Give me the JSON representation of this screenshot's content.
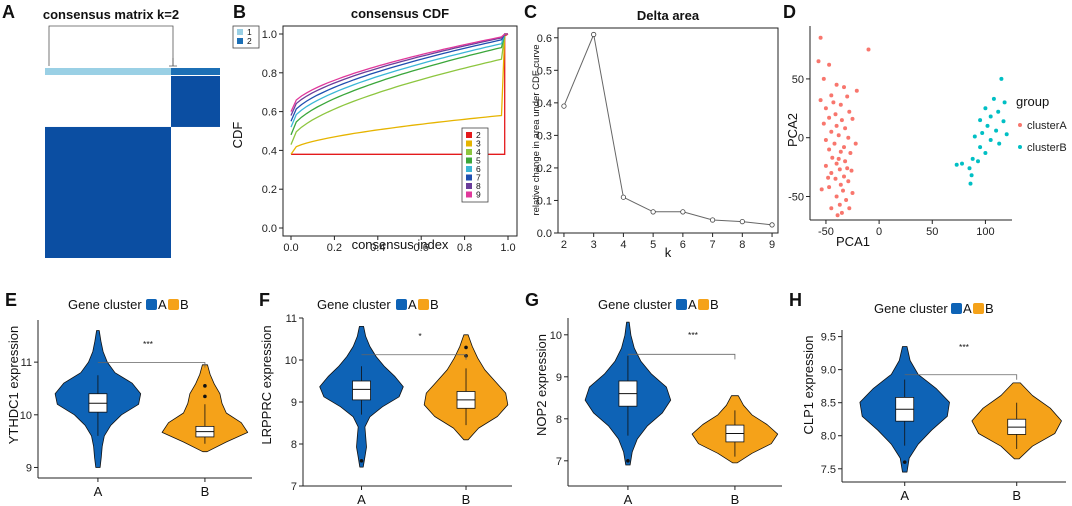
{
  "chart_data": [
    {
      "panel": "A",
      "type": "heatmap",
      "title": "consensus matrix k=2",
      "clusters": [
        {
          "name": "1",
          "size": 0.72,
          "color": "#9ad0e5"
        },
        {
          "name": "2",
          "size": 0.28,
          "color": "#1c6fb5"
        }
      ],
      "fill_color": "#0b4ea2"
    },
    {
      "panel": "B",
      "type": "line",
      "title": "consensus CDF",
      "xlabel": "consensus index",
      "ylabel": "CDF",
      "xlim": [
        0,
        1
      ],
      "ylim": [
        0,
        1
      ],
      "xticks": [
        "0.0",
        "0.2",
        "0.4",
        "0.6",
        "0.8",
        "1.0"
      ],
      "yticks": [
        "0.0",
        "0.2",
        "0.4",
        "0.6",
        "0.8",
        "1.0"
      ],
      "legend_top": [
        {
          "label": "1",
          "color": "#9ad0e5"
        },
        {
          "label": "2",
          "color": "#1c6fb5"
        }
      ],
      "series": [
        {
          "name": "2",
          "color": "#e41a1c",
          "start": 0.38,
          "end": 0.38
        },
        {
          "name": "3",
          "color": "#e6b400",
          "start": 0.4,
          "end": 0.58
        },
        {
          "name": "4",
          "color": "#8dc63f",
          "start": 0.45,
          "end": 0.87
        },
        {
          "name": "5",
          "color": "#3aa63a",
          "start": 0.5,
          "end": 0.93
        },
        {
          "name": "6",
          "color": "#3bb6d6",
          "start": 0.54,
          "end": 0.95
        },
        {
          "name": "7",
          "color": "#1f4fb0",
          "start": 0.57,
          "end": 0.97
        },
        {
          "name": "8",
          "color": "#6a3d9a",
          "start": 0.6,
          "end": 0.98
        },
        {
          "name": "9",
          "color": "#e0389b",
          "start": 0.62,
          "end": 0.985
        }
      ]
    },
    {
      "panel": "C",
      "type": "line",
      "title": "Delta area",
      "xlabel": "k",
      "ylabel": "relative change in area under CDF curve",
      "x": [
        2,
        3,
        4,
        5,
        6,
        7,
        8,
        9
      ],
      "y": [
        0.39,
        0.61,
        0.11,
        0.065,
        0.065,
        0.04,
        0.035,
        0.025
      ],
      "xlim": [
        1.8,
        9.2
      ],
      "ylim": [
        0,
        0.63
      ],
      "yticks": [
        0.0,
        0.1,
        0.2,
        0.3,
        0.4,
        0.5,
        0.6
      ],
      "yticklabels": [
        "0.0",
        "0.1",
        "0.2",
        "0.3",
        "0.4",
        "0.5",
        "0.6"
      ],
      "xticklabels": [
        "2",
        "3",
        "4",
        "5",
        "6",
        "7",
        "8",
        "9"
      ]
    },
    {
      "panel": "D",
      "type": "scatter",
      "xlabel": "PCA1",
      "ylabel": "PCA2",
      "xlim": [
        -65,
        125
      ],
      "ylim": [
        -70,
        95
      ],
      "xticks": [
        -50,
        0,
        50,
        100
      ],
      "xticklabels": [
        "-50",
        "0",
        "50",
        "100"
      ],
      "yticks": [
        -50,
        0,
        50
      ],
      "yticklabels": [
        "-50",
        "0",
        "50"
      ],
      "legend_title": "group",
      "series": [
        {
          "name": "clusterA",
          "color": "#f8766d",
          "points": [
            [
              -55,
              85
            ],
            [
              -10,
              75
            ],
            [
              -57,
              65
            ],
            [
              -47,
              62
            ],
            [
              -52,
              50
            ],
            [
              -40,
              45
            ],
            [
              -33,
              43
            ],
            [
              -45,
              36
            ],
            [
              -30,
              35
            ],
            [
              -55,
              32
            ],
            [
              -36,
              28
            ],
            [
              -50,
              25
            ],
            [
              -28,
              22
            ],
            [
              -41,
              20
            ],
            [
              -47,
              17
            ],
            [
              -35,
              15
            ],
            [
              -25,
              16
            ],
            [
              -52,
              12
            ],
            [
              -40,
              10
            ],
            [
              -32,
              8
            ],
            [
              -45,
              5
            ],
            [
              -38,
              2
            ],
            [
              -29,
              0
            ],
            [
              -50,
              -2
            ],
            [
              -42,
              -5
            ],
            [
              -33,
              -8
            ],
            [
              -47,
              -10
            ],
            [
              -36,
              -12
            ],
            [
              -27,
              -13
            ],
            [
              -44,
              -17
            ],
            [
              -32,
              -20
            ],
            [
              -40,
              -22
            ],
            [
              -50,
              -24
            ],
            [
              -37,
              -27
            ],
            [
              -26,
              -28
            ],
            [
              -45,
              -30
            ],
            [
              -33,
              -33
            ],
            [
              -41,
              -35
            ],
            [
              -29,
              -37
            ],
            [
              -36,
              -40
            ],
            [
              -47,
              -42
            ],
            [
              -34,
              -45
            ],
            [
              -25,
              -47
            ],
            [
              -40,
              -50
            ],
            [
              -31,
              -53
            ],
            [
              -37,
              -57
            ],
            [
              -45,
              -60
            ],
            [
              -35,
              -64
            ],
            [
              -22,
              -5
            ],
            [
              -48,
              -34
            ],
            [
              -30,
              -26
            ],
            [
              -38,
              -18
            ],
            [
              -43,
              30
            ],
            [
              -21,
              40
            ],
            [
              -54,
              -44
            ],
            [
              -28,
              -60
            ],
            [
              -39,
              -66
            ]
          ]
        },
        {
          "name": "clusterB",
          "color": "#00bfc4",
          "points": [
            [
              115,
              50
            ],
            [
              108,
              33
            ],
            [
              118,
              30
            ],
            [
              100,
              25
            ],
            [
              112,
              22
            ],
            [
              105,
              18
            ],
            [
              95,
              15
            ],
            [
              117,
              14
            ],
            [
              102,
              10
            ],
            [
              110,
              6
            ],
            [
              97,
              4
            ],
            [
              120,
              3
            ],
            [
              90,
              1
            ],
            [
              105,
              -2
            ],
            [
              113,
              -5
            ],
            [
              95,
              -8
            ],
            [
              100,
              -13
            ],
            [
              88,
              -18
            ],
            [
              78,
              -22
            ],
            [
              85,
              -26
            ],
            [
              73,
              -23
            ],
            [
              87,
              -32
            ],
            [
              86,
              -39
            ],
            [
              93,
              -20
            ]
          ]
        }
      ]
    },
    {
      "panel": "E",
      "type": "violin",
      "ylabel": "YTHDC1 expression",
      "legend_title": "Gene cluster",
      "significance": "***",
      "categories": [
        "A",
        "B"
      ],
      "ylim": [
        8.8,
        11.8
      ],
      "yticks": [
        9,
        10,
        11
      ],
      "yticklabels": [
        "9",
        "10",
        "11"
      ],
      "groups": [
        {
          "name": "A",
          "color": "#0e63b6",
          "min": 9.0,
          "max": 11.6,
          "center": 10.25,
          "widths": [
            0.05,
            0.08,
            0.1,
            0.15,
            0.3,
            0.55,
            0.95,
            1.0,
            0.8,
            0.4,
            0.22,
            0.12,
            0.07,
            0.03
          ],
          "q1": 10.05,
          "median": 10.22,
          "q3": 10.4,
          "whisker_low": 9.6,
          "whisker_high": 10.75,
          "outliers": []
        },
        {
          "name": "B",
          "color": "#f5a219",
          "min": 9.3,
          "max": 10.95,
          "center": 9.7,
          "widths": [
            0.05,
            0.5,
            1.0,
            0.85,
            0.5,
            0.4,
            0.35,
            0.22,
            0.12,
            0.06
          ],
          "q1": 9.58,
          "median": 9.68,
          "q3": 9.78,
          "whisker_low": 9.45,
          "whisker_high": 10.2,
          "outliers": [
            10.35,
            10.55
          ]
        }
      ]
    },
    {
      "panel": "F",
      "type": "violin",
      "ylabel": "LRPPRC expression",
      "legend_title": "Gene cluster",
      "significance": "*",
      "categories": [
        "A",
        "B"
      ],
      "ylim": [
        7.0,
        11.0
      ],
      "yticks": [
        7,
        8,
        9,
        10,
        11
      ],
      "yticklabels": [
        "7",
        "8",
        "9",
        "10",
        "11"
      ],
      "groups": [
        {
          "name": "A",
          "color": "#0e63b6",
          "min": 7.45,
          "max": 10.8,
          "center": 9.3,
          "widths": [
            0.04,
            0.08,
            0.12,
            0.1,
            0.08,
            0.2,
            0.5,
            0.9,
            1.0,
            0.8,
            0.55,
            0.35,
            0.2,
            0.1,
            0.05
          ],
          "q1": 9.05,
          "median": 9.3,
          "q3": 9.5,
          "whisker_low": 8.7,
          "whisker_high": 9.85,
          "outliers": [
            7.6
          ]
        },
        {
          "name": "B",
          "color": "#f5a219",
          "min": 8.1,
          "max": 10.6,
          "center": 9.05,
          "widths": [
            0.05,
            0.3,
            0.75,
            1.0,
            0.95,
            0.7,
            0.45,
            0.28,
            0.15,
            0.05
          ],
          "q1": 8.85,
          "median": 9.05,
          "q3": 9.25,
          "whisker_low": 8.45,
          "whisker_high": 9.8,
          "outliers": [
            10.1,
            10.3
          ]
        }
      ]
    },
    {
      "panel": "G",
      "type": "violin",
      "ylabel": "NOP2 expression",
      "legend_title": "Gene cluster",
      "significance": "***",
      "categories": [
        "A",
        "B"
      ],
      "ylim": [
        6.4,
        10.4
      ],
      "yticks": [
        7,
        8,
        9,
        10
      ],
      "yticklabels": [
        "7",
        "8",
        "9",
        "10"
      ],
      "groups": [
        {
          "name": "A",
          "color": "#0e63b6",
          "min": 6.9,
          "max": 10.3,
          "center": 8.6,
          "widths": [
            0.05,
            0.1,
            0.22,
            0.45,
            0.8,
            1.0,
            0.9,
            0.55,
            0.3,
            0.15,
            0.07,
            0.03
          ],
          "q1": 8.3,
          "median": 8.6,
          "q3": 8.9,
          "whisker_low": 7.6,
          "whisker_high": 9.5,
          "outliers": [
            7.0
          ]
        },
        {
          "name": "B",
          "color": "#f5a219",
          "min": 6.95,
          "max": 8.55,
          "center": 7.65,
          "widths": [
            0.05,
            0.4,
            0.85,
            1.0,
            0.75,
            0.4,
            0.2,
            0.08
          ],
          "q1": 7.45,
          "median": 7.65,
          "q3": 7.85,
          "whisker_low": 7.1,
          "whisker_high": 8.2,
          "outliers": []
        }
      ]
    },
    {
      "panel": "H",
      "type": "violin",
      "ylabel": "CLP1 expression",
      "legend_title": "Gene cluster",
      "significance": "***",
      "categories": [
        "A",
        "B"
      ],
      "ylim": [
        7.3,
        9.6
      ],
      "yticks": [
        7.5,
        8.0,
        8.5,
        9.0,
        9.5
      ],
      "yticklabels": [
        "7.5",
        "8.0",
        "8.5",
        "9.0",
        "9.5"
      ],
      "groups": [
        {
          "name": "A",
          "color": "#0e63b6",
          "min": 7.45,
          "max": 9.35,
          "center": 8.4,
          "widths": [
            0.05,
            0.1,
            0.3,
            0.6,
            0.95,
            1.0,
            0.7,
            0.3,
            0.12,
            0.05
          ],
          "q1": 8.22,
          "median": 8.4,
          "q3": 8.58,
          "whisker_low": 7.85,
          "whisker_high": 8.85,
          "outliers": [
            7.6
          ]
        },
        {
          "name": "B",
          "color": "#f5a219",
          "min": 7.65,
          "max": 8.8,
          "center": 8.15,
          "widths": [
            0.05,
            0.35,
            0.85,
            1.0,
            0.75,
            0.35,
            0.08
          ],
          "q1": 8.02,
          "median": 8.13,
          "q3": 8.25,
          "whisker_low": 7.8,
          "whisker_high": 8.5,
          "outliers": []
        }
      ]
    }
  ]
}
